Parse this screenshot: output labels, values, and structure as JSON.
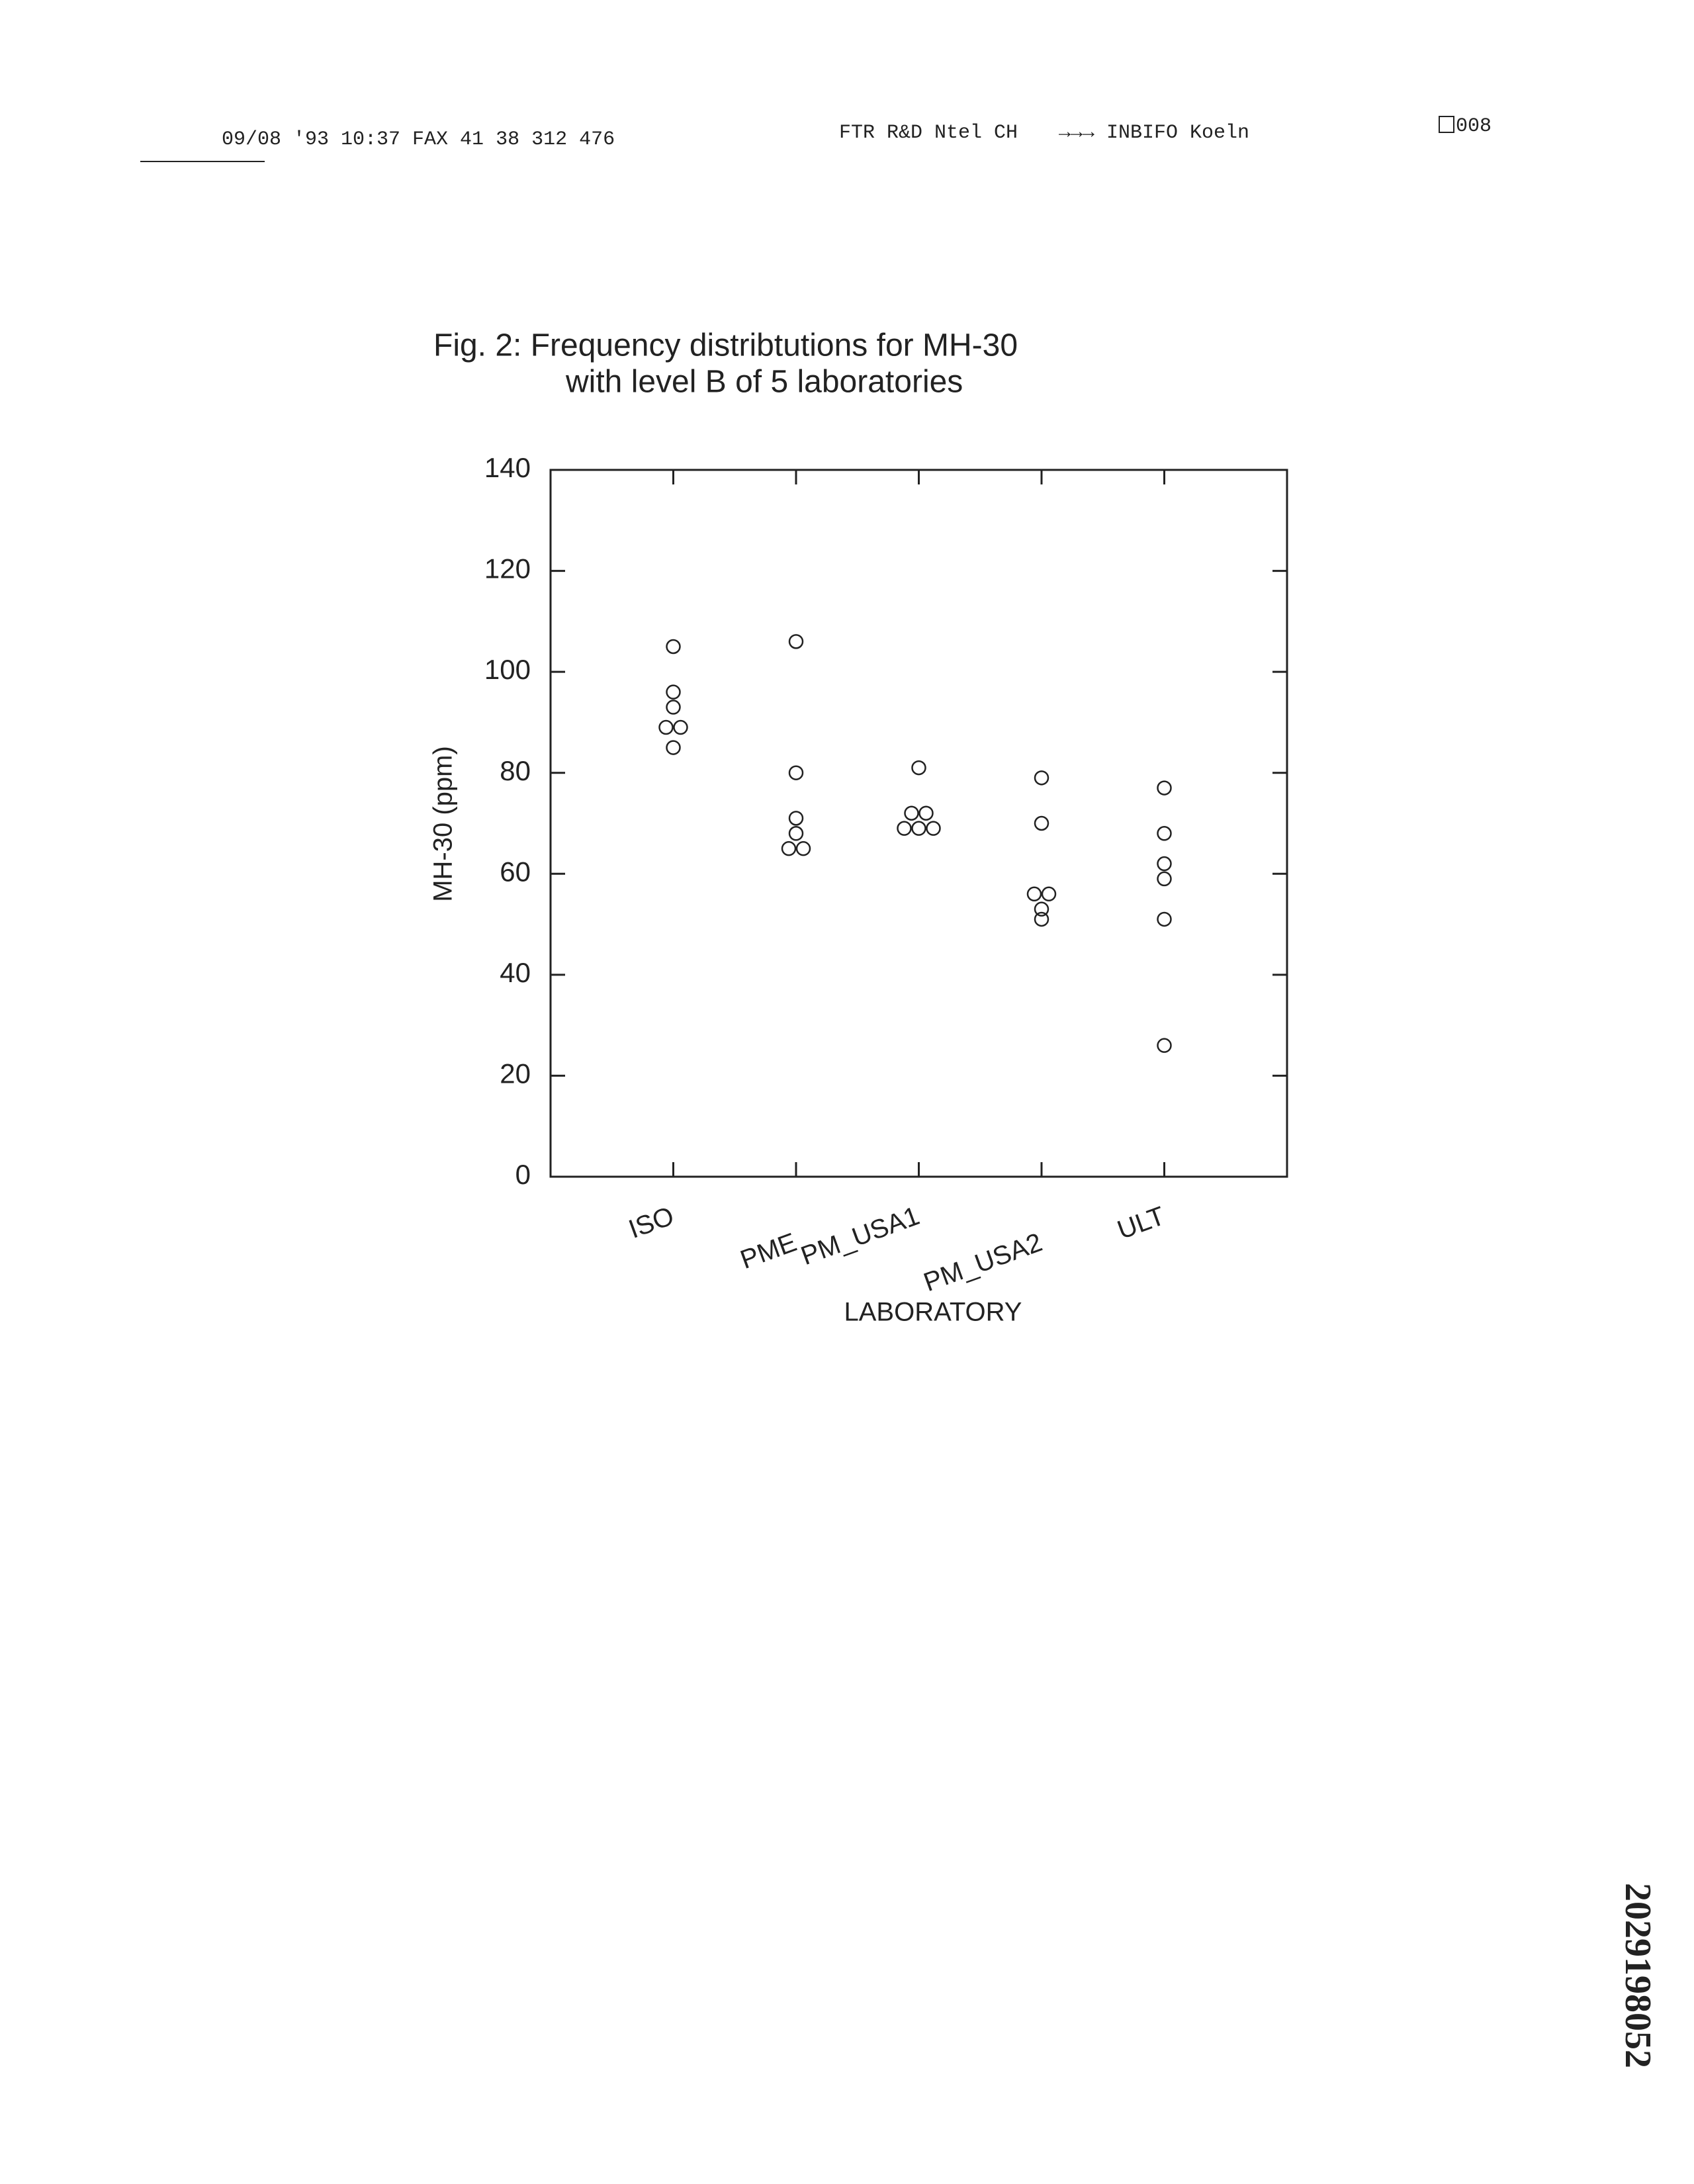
{
  "header": {
    "fax_line": "09/08 '93  10:37  FAX 41 38 312 476",
    "sender": "FTR R&D Ntel CH",
    "recipient": "→→→ INBIFO Koeln",
    "page": "008"
  },
  "document_id": "2029198052",
  "chart_data": {
    "type": "strip",
    "title": [
      "Fig.  2: Frequency distribtutions for MH-30",
      "with level B of 5 laboratories"
    ],
    "xlabel": "LABORATORY",
    "ylabel": "MH-30 (ppm)",
    "categories": [
      "ISO",
      "PME",
      "PM_USA1",
      "PM_USA2",
      "ULT"
    ],
    "values": [
      [
        105,
        96,
        93,
        89,
        89,
        85
      ],
      [
        106,
        80,
        71,
        68,
        65,
        65
      ],
      [
        81,
        72,
        72,
        69,
        69,
        69
      ],
      [
        79,
        70,
        56,
        56,
        53,
        51
      ],
      [
        77,
        68,
        62,
        59,
        51,
        26
      ]
    ],
    "ylim": [
      0,
      140
    ],
    "yticks": [
      0,
      20,
      40,
      60,
      80,
      100,
      120,
      140
    ],
    "grid": false,
    "color": "#222"
  }
}
